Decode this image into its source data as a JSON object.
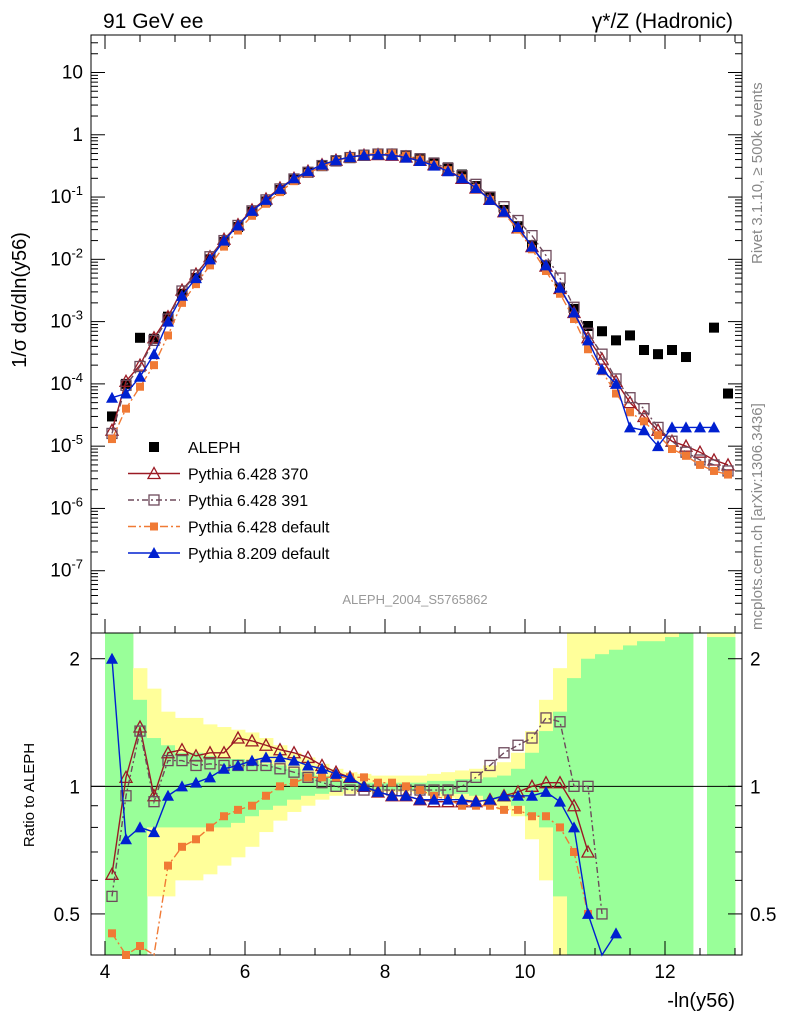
{
  "header": {
    "left": "91 GeV ee",
    "right": "γ*/Z (Hadronic)"
  },
  "side_labels": {
    "rivet": "Rivet 3.1.10, ≥ 500k events",
    "mcplots": "mcplots.cern.ch [arXiv:1306.3436]"
  },
  "watermark": "ALEPH_2004_S5765862",
  "colors": {
    "aleph": "#000000",
    "p370": "#9b1a24",
    "p391": "#6e4a5c",
    "p6def": "#f07a35",
    "p8def": "#0020d0",
    "band_yellow": "#ffff9a",
    "band_green": "#99ff99"
  },
  "chart_data": [
    {
      "type": "scatter",
      "ylabel": "1/σ dσ/dln(y56)",
      "yscale": "log",
      "ylim": [
        1e-08,
        40
      ],
      "xlim": [
        3.8,
        13.1
      ],
      "yticks": [
        "10^-7",
        "10^-6",
        "10^-5",
        "10^-4",
        "10^-3",
        "10^-2",
        "10^-1",
        "1",
        "10"
      ],
      "legend_position": "bottom-left",
      "series": [
        {
          "name": "ALEPH",
          "x": [
            4.1,
            4.3,
            4.5,
            4.7,
            4.9,
            5.1,
            5.3,
            5.5,
            5.7,
            5.9,
            6.1,
            6.3,
            6.5,
            6.7,
            6.9,
            7.1,
            7.3,
            7.5,
            7.7,
            7.9,
            8.1,
            8.3,
            8.5,
            8.7,
            8.9,
            9.1,
            9.3,
            9.5,
            9.7,
            9.9,
            10.1,
            10.3,
            10.5,
            10.7,
            10.9,
            11.1,
            11.3,
            11.5,
            11.7,
            11.9,
            12.1,
            12.3,
            12.7,
            12.9
          ],
          "y": [
            3e-05,
            0.0001,
            0.00055,
            0.00053,
            0.0012,
            0.0028,
            0.005,
            0.01,
            0.019,
            0.033,
            0.058,
            0.085,
            0.13,
            0.19,
            0.25,
            0.32,
            0.39,
            0.44,
            0.48,
            0.5,
            0.5,
            0.46,
            0.42,
            0.36,
            0.3,
            0.23,
            0.15,
            0.1,
            0.062,
            0.034,
            0.017,
            0.0078,
            0.0034,
            0.0016,
            0.00085,
            0.0007,
            0.0005,
            0.0006,
            0.00035,
            0.0003,
            0.00035,
            0.00027,
            0.0008,
            7e-05
          ]
        },
        {
          "name": "Pythia 6.428 370",
          "x": [
            4.1,
            4.3,
            4.5,
            4.7,
            4.9,
            5.1,
            5.3,
            5.5,
            5.7,
            5.9,
            6.1,
            6.3,
            6.5,
            6.7,
            6.9,
            7.1,
            7.3,
            7.5,
            7.7,
            7.9,
            8.1,
            8.3,
            8.5,
            8.7,
            8.9,
            9.1,
            9.3,
            9.5,
            9.7,
            9.9,
            10.1,
            10.3,
            10.5,
            10.7,
            10.9,
            11.1,
            11.3,
            11.5,
            11.7,
            11.9,
            12.1,
            12.3,
            12.5,
            12.7,
            12.9
          ],
          "y": [
            1.8e-05,
            0.00011,
            0.0002,
            0.00055,
            0.0012,
            0.0032,
            0.0058,
            0.011,
            0.021,
            0.036,
            0.062,
            0.093,
            0.14,
            0.2,
            0.26,
            0.33,
            0.39,
            0.44,
            0.47,
            0.48,
            0.47,
            0.44,
            0.39,
            0.33,
            0.27,
            0.2,
            0.14,
            0.092,
            0.058,
            0.032,
            0.016,
            0.0078,
            0.0034,
            0.0014,
            0.00055,
            0.00025,
            0.00011,
            5e-05,
            3e-05,
            1.8e-05,
            1.2e-05,
            1e-05,
            8e-06,
            6e-06,
            5e-06
          ]
        },
        {
          "name": "Pythia 6.428 391",
          "x": [
            4.1,
            4.3,
            4.5,
            4.7,
            4.9,
            5.1,
            5.3,
            5.5,
            5.7,
            5.9,
            6.1,
            6.3,
            6.5,
            6.7,
            6.9,
            7.1,
            7.3,
            7.5,
            7.7,
            7.9,
            8.1,
            8.3,
            8.5,
            8.7,
            8.9,
            9.1,
            9.3,
            9.5,
            9.7,
            9.9,
            10.1,
            10.3,
            10.5,
            10.7,
            10.9,
            11.1,
            11.3,
            11.5,
            11.7,
            11.9,
            12.1,
            12.3,
            12.5,
            12.7,
            12.9
          ],
          "y": [
            1.6e-05,
            9.5e-05,
            0.00019,
            0.0005,
            0.0011,
            0.0031,
            0.0056,
            0.011,
            0.02,
            0.035,
            0.06,
            0.09,
            0.135,
            0.195,
            0.25,
            0.32,
            0.38,
            0.43,
            0.47,
            0.49,
            0.49,
            0.46,
            0.41,
            0.35,
            0.29,
            0.22,
            0.16,
            0.1,
            0.07,
            0.042,
            0.024,
            0.0115,
            0.005,
            0.0017,
            0.00065,
            0.0003,
            0.00012,
            6e-05,
            4e-05,
            2e-05,
            1.2e-05,
            8e-06,
            6e-06,
            5e-06,
            4e-06
          ]
        },
        {
          "name": "Pythia 6.428 default",
          "x": [
            4.1,
            4.3,
            4.5,
            4.7,
            4.9,
            5.1,
            5.3,
            5.5,
            5.7,
            5.9,
            6.1,
            6.3,
            6.5,
            6.7,
            6.9,
            7.1,
            7.3,
            7.5,
            7.7,
            7.9,
            8.1,
            8.3,
            8.5,
            8.7,
            8.9,
            9.1,
            9.3,
            9.5,
            9.7,
            9.9,
            10.1,
            10.3,
            10.5,
            10.7,
            10.9,
            11.1,
            11.3,
            11.5,
            11.7,
            11.9,
            12.1,
            12.3,
            12.5,
            12.7,
            12.9
          ],
          "y": [
            1.3e-05,
            4e-05,
            9e-05,
            0.0002,
            0.0006,
            0.002,
            0.004,
            0.008,
            0.016,
            0.029,
            0.05,
            0.078,
            0.12,
            0.18,
            0.24,
            0.31,
            0.38,
            0.44,
            0.48,
            0.5,
            0.5,
            0.46,
            0.4,
            0.33,
            0.27,
            0.2,
            0.14,
            0.09,
            0.055,
            0.03,
            0.0145,
            0.0065,
            0.0028,
            0.0011,
            0.00036,
            0.00016,
            7e-05,
            3.5e-05,
            2.5e-05,
            1.5e-05,
            9e-06,
            7e-06,
            5e-06,
            4e-06,
            3.5e-06
          ]
        },
        {
          "name": "Pythia 8.209 default",
          "x": [
            4.1,
            4.3,
            4.5,
            4.7,
            4.9,
            5.1,
            5.3,
            5.5,
            5.7,
            5.9,
            6.1,
            6.3,
            6.5,
            6.7,
            6.9,
            7.1,
            7.3,
            7.5,
            7.7,
            7.9,
            8.1,
            8.3,
            8.5,
            8.7,
            8.9,
            9.1,
            9.3,
            9.5,
            9.7,
            9.9,
            10.1,
            10.3,
            10.5,
            10.7,
            10.9,
            11.1,
            11.3,
            11.5,
            11.7,
            11.9,
            12.1,
            12.3,
            12.5,
            12.7
          ],
          "y": [
            6e-05,
            7e-05,
            0.00013,
            0.0003,
            0.001,
            0.0026,
            0.005,
            0.01,
            0.02,
            0.035,
            0.06,
            0.09,
            0.135,
            0.2,
            0.26,
            0.33,
            0.39,
            0.44,
            0.47,
            0.48,
            0.47,
            0.43,
            0.38,
            0.32,
            0.26,
            0.2,
            0.14,
            0.09,
            0.058,
            0.033,
            0.016,
            0.008,
            0.0035,
            0.0014,
            0.0005,
            0.00017,
            0.0001,
            2e-05,
            1.8e-05,
            1e-05,
            2e-05,
            2e-05,
            2e-05,
            2e-05
          ]
        }
      ]
    },
    {
      "type": "scatter",
      "xlabel": "-ln(y56)",
      "ylabel": "Ratio to ALEPH",
      "ylim": [
        0.4,
        2.3
      ],
      "xlim": [
        3.8,
        13.1
      ],
      "xticks": [
        "4",
        "6",
        "8",
        "10",
        "12"
      ],
      "yticks": [
        "0.5",
        "1",
        "2"
      ],
      "series": [
        {
          "name": "Pythia 6.428 370",
          "x": [
            4.1,
            4.3,
            4.5,
            4.7,
            4.9,
            5.1,
            5.3,
            5.5,
            5.7,
            5.9,
            6.1,
            6.3,
            6.5,
            6.7,
            6.9,
            7.1,
            7.3,
            7.5,
            7.7,
            7.9,
            8.1,
            8.3,
            8.5,
            8.7,
            8.9,
            9.1,
            9.3,
            9.5,
            9.7,
            9.9,
            10.1,
            10.3,
            10.5,
            10.7,
            10.9
          ],
          "y": [
            0.62,
            1.05,
            1.38,
            0.95,
            1.2,
            1.22,
            1.18,
            1.2,
            1.2,
            1.3,
            1.28,
            1.25,
            1.22,
            1.2,
            1.17,
            1.12,
            1.08,
            1.05,
            1.0,
            0.97,
            0.95,
            0.95,
            0.93,
            0.92,
            0.92,
            0.92,
            0.92,
            0.93,
            0.95,
            0.97,
            1.0,
            1.02,
            1.02,
            0.9,
            0.7
          ]
        },
        {
          "name": "Pythia 6.428 391",
          "x": [
            4.1,
            4.3,
            4.5,
            4.7,
            4.9,
            5.1,
            5.3,
            5.5,
            5.7,
            5.9,
            6.1,
            6.3,
            6.5,
            6.7,
            6.9,
            7.1,
            7.3,
            7.5,
            7.7,
            7.9,
            8.1,
            8.3,
            8.5,
            8.7,
            8.9,
            9.1,
            9.3,
            9.5,
            9.7,
            9.9,
            10.1,
            10.3,
            10.5,
            10.7,
            10.9,
            11.1
          ],
          "y": [
            0.55,
            0.95,
            1.35,
            0.92,
            1.15,
            1.15,
            1.12,
            1.13,
            1.12,
            1.12,
            1.12,
            1.12,
            1.1,
            1.08,
            1.05,
            1.02,
            1.0,
            0.98,
            0.98,
            0.98,
            0.98,
            0.98,
            0.98,
            0.98,
            0.98,
            1.0,
            1.05,
            1.12,
            1.2,
            1.25,
            1.3,
            1.45,
            1.42,
            1.0,
            1.0,
            0.5
          ]
        },
        {
          "name": "Pythia 6.428 default",
          "x": [
            4.1,
            4.3,
            4.5,
            4.7,
            4.9,
            5.1,
            5.3,
            5.5,
            5.7,
            5.9,
            6.1,
            6.3,
            6.5,
            6.7,
            6.9,
            7.1,
            7.3,
            7.5,
            7.7,
            7.9,
            8.1,
            8.3,
            8.5,
            8.7,
            8.9,
            9.1,
            9.3,
            9.5,
            9.7,
            9.9,
            10.1,
            10.3,
            10.5,
            10.7,
            10.9
          ],
          "y": [
            0.45,
            0.4,
            0.42,
            0.38,
            0.65,
            0.72,
            0.75,
            0.8,
            0.85,
            0.88,
            0.9,
            0.95,
            1.0,
            1.02,
            1.05,
            1.05,
            1.05,
            1.05,
            1.05,
            1.02,
            1.02,
            1.0,
            0.98,
            0.95,
            0.93,
            0.9,
            0.9,
            0.9,
            0.88,
            0.88,
            0.85,
            0.85,
            0.8,
            0.7,
            0.5
          ]
        },
        {
          "name": "Pythia 8.209 default",
          "x": [
            4.1,
            4.3,
            4.5,
            4.7,
            4.9,
            5.1,
            5.3,
            5.5,
            5.7,
            5.9,
            6.1,
            6.3,
            6.5,
            6.7,
            6.9,
            7.1,
            7.3,
            7.5,
            7.7,
            7.9,
            8.1,
            8.3,
            8.5,
            8.7,
            8.9,
            9.1,
            9.3,
            9.5,
            9.7,
            9.9,
            10.1,
            10.3,
            10.5,
            10.7,
            10.9,
            11.1,
            11.3
          ],
          "y": [
            2.0,
            0.75,
            0.8,
            0.78,
            0.95,
            1.0,
            1.02,
            1.05,
            1.1,
            1.12,
            1.15,
            1.17,
            1.17,
            1.15,
            1.12,
            1.1,
            1.07,
            1.05,
            1.0,
            0.97,
            0.95,
            0.95,
            0.93,
            0.93,
            0.93,
            0.93,
            0.92,
            0.93,
            0.95,
            0.95,
            0.95,
            0.97,
            0.92,
            0.8,
            0.5,
            0.35,
            0.45
          ]
        }
      ],
      "bands": {
        "x_edges": [
          4.0,
          4.2,
          4.4,
          4.6,
          4.8,
          5.0,
          5.2,
          5.4,
          5.6,
          5.8,
          6.0,
          6.2,
          6.4,
          6.6,
          6.8,
          7.0,
          7.2,
          7.4,
          7.6,
          7.8,
          8.0,
          8.2,
          8.4,
          8.6,
          8.8,
          9.0,
          9.2,
          9.4,
          9.6,
          9.8,
          10.0,
          10.2,
          10.4,
          10.6,
          10.8,
          11.0,
          11.2,
          11.4,
          11.6,
          11.8,
          12.0,
          12.2,
          12.4,
          12.6,
          12.8,
          13.0
        ],
        "yellow_low": [
          0.4,
          0.4,
          0.4,
          0.55,
          0.55,
          0.6,
          0.6,
          0.62,
          0.65,
          0.68,
          0.72,
          0.78,
          0.83,
          0.87,
          0.9,
          0.93,
          0.95,
          0.96,
          0.97,
          0.97,
          0.97,
          0.97,
          0.96,
          0.95,
          0.94,
          0.93,
          0.92,
          0.9,
          0.88,
          0.85,
          0.75,
          0.6,
          0.4,
          0.4,
          0.4,
          0.4,
          0.4,
          0.4,
          0.4,
          0.4,
          0.4,
          0.4,
          null,
          0.4,
          0.4
        ],
        "yellow_high": [
          2.3,
          2.3,
          1.9,
          1.7,
          1.5,
          1.45,
          1.45,
          1.4,
          1.38,
          1.36,
          1.34,
          1.3,
          1.25,
          1.2,
          1.17,
          1.13,
          1.1,
          1.08,
          1.07,
          1.06,
          1.06,
          1.06,
          1.06,
          1.07,
          1.08,
          1.09,
          1.1,
          1.12,
          1.14,
          1.2,
          1.35,
          1.6,
          1.9,
          2.3,
          2.3,
          2.3,
          2.3,
          2.3,
          2.3,
          2.3,
          2.3,
          2.3,
          null,
          2.3,
          2.3
        ],
        "green_low": [
          0.4,
          0.4,
          0.4,
          0.8,
          0.8,
          0.8,
          0.8,
          0.8,
          0.8,
          0.82,
          0.85,
          0.88,
          0.9,
          0.93,
          0.95,
          0.96,
          0.97,
          0.98,
          0.98,
          0.98,
          0.98,
          0.98,
          0.98,
          0.97,
          0.96,
          0.96,
          0.95,
          0.93,
          0.92,
          0.9,
          0.85,
          0.8,
          0.55,
          0.4,
          0.4,
          0.4,
          0.4,
          0.4,
          0.4,
          0.4,
          0.4,
          0.4,
          null,
          0.4,
          0.4
        ],
        "green_high": [
          2.3,
          2.3,
          1.6,
          1.3,
          1.25,
          1.2,
          1.2,
          1.18,
          1.17,
          1.16,
          1.15,
          1.13,
          1.12,
          1.1,
          1.08,
          1.06,
          1.04,
          1.03,
          1.02,
          1.02,
          1.02,
          1.02,
          1.02,
          1.03,
          1.03,
          1.04,
          1.04,
          1.05,
          1.06,
          1.1,
          1.2,
          1.35,
          1.5,
          1.8,
          2.0,
          2.05,
          2.1,
          2.15,
          2.2,
          2.2,
          2.25,
          2.3,
          null,
          2.25,
          2.25
        ]
      }
    }
  ]
}
